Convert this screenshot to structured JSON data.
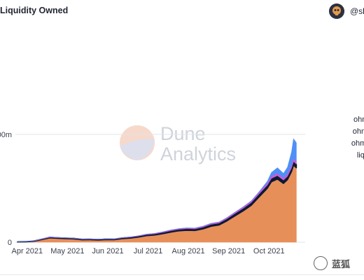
{
  "header": {
    "title": "Liquidity Owned",
    "author_handle": "@sl"
  },
  "brand_watermark": [
    "Dune",
    "Analytics"
  ],
  "legend": [
    {
      "label": "ohm_c",
      "color": "#4f8ff7"
    },
    {
      "label": "ohm_fr",
      "color": "#c85bd6"
    },
    {
      "label": "ohm_lu",
      "color": "#0d1a33"
    },
    {
      "label": "liquidi",
      "color": "#e78f59"
    }
  ],
  "chart_data": {
    "type": "area",
    "title": "Liquidity Owned",
    "xlabel": "",
    "ylabel": "",
    "x_ticks": [
      "Apr 2021",
      "May 2021",
      "Jun 2021",
      "Jul 2021",
      "Aug 2021",
      "Sep 2021",
      "Oct 2021"
    ],
    "y_ticks": [
      {
        "value": 0,
        "label": "0"
      },
      {
        "value": 100,
        "label": "00m"
      }
    ],
    "ylim": [
      0,
      100
    ],
    "y_unit": "m",
    "grid": true,
    "legend_position": "right",
    "x": [
      0,
      0.2,
      0.4,
      0.6,
      0.8,
      1.0,
      1.2,
      1.4,
      1.6,
      1.8,
      2.0,
      2.2,
      2.4,
      2.6,
      2.8,
      3.0,
      3.2,
      3.4,
      3.6,
      3.8,
      4.0,
      4.2,
      4.4,
      4.6,
      4.8,
      5.0,
      5.2,
      5.4,
      5.6,
      5.8,
      6.0,
      6.2,
      6.3,
      6.45,
      6.6,
      6.7,
      6.8,
      6.85,
      6.92
    ],
    "series": [
      {
        "name": "liquidi",
        "color": "#e78f59",
        "values": [
          0.2,
          0.3,
          0.8,
          2.4,
          4.0,
          3.6,
          3.3,
          3.0,
          2.2,
          2.3,
          2.0,
          2.4,
          2.3,
          3.3,
          3.8,
          4.7,
          6.0,
          6.6,
          7.8,
          9.3,
          10.5,
          11.0,
          10.8,
          12.3,
          14.7,
          15.9,
          19.8,
          24.5,
          29.0,
          34.2,
          42.2,
          50.0,
          56.0,
          58.5,
          54.5,
          58.0,
          65.5,
          71.5,
          69.0
        ]
      },
      {
        "name": "ohm_lu",
        "color": "#0d1a33",
        "values": [
          0.2,
          0.2,
          0.3,
          0.4,
          0.6,
          0.6,
          0.6,
          0.6,
          0.6,
          0.6,
          0.6,
          0.6,
          0.6,
          0.7,
          0.8,
          0.9,
          1.0,
          1.1,
          1.2,
          1.3,
          1.4,
          1.5,
          1.5,
          1.6,
          1.8,
          1.8,
          2.0,
          2.2,
          2.4,
          2.6,
          2.8,
          3.0,
          3.2,
          3.3,
          3.1,
          3.2,
          3.4,
          3.5,
          3.4
        ]
      },
      {
        "name": "ohm_fr",
        "color": "#c85bd6",
        "values": [
          0,
          0,
          0.1,
          0.2,
          0.3,
          0.3,
          0.2,
          0.2,
          0.2,
          0.2,
          0.2,
          0.2,
          0.2,
          0.3,
          0.3,
          0.4,
          0.5,
          0.5,
          0.6,
          0.7,
          0.7,
          0.8,
          0.8,
          0.9,
          1.0,
          1.0,
          1.1,
          1.2,
          1.4,
          1.5,
          1.7,
          2.0,
          2.2,
          2.3,
          2.0,
          2.4,
          2.8,
          3.0,
          2.8
        ]
      },
      {
        "name": "ohm_c",
        "color": "#4f8ff7",
        "values": [
          0,
          0,
          0,
          0,
          0,
          0,
          0,
          0,
          0,
          0,
          0,
          0,
          0,
          0,
          0,
          0,
          0,
          0,
          0,
          0,
          0,
          0,
          0,
          0,
          0,
          0,
          0,
          0,
          0,
          0,
          0.3,
          1.5,
          3.2,
          5.0,
          4.2,
          6.0,
          12.0,
          18.0,
          17.0
        ]
      }
    ]
  }
}
